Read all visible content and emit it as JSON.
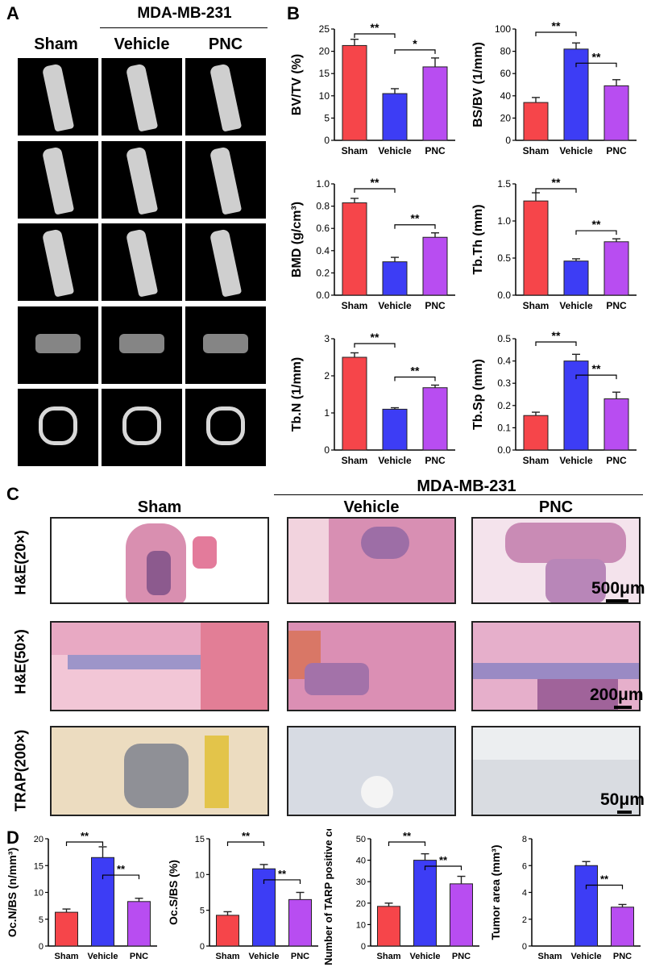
{
  "panel_a": {
    "label": "A",
    "group_header": "MDA-MB-231",
    "columns": [
      "Sham",
      "Vehicle",
      "PNC"
    ]
  },
  "panel_b": {
    "label": "B"
  },
  "panel_c": {
    "label": "C",
    "group_header": "MDA-MB-231",
    "columns": [
      "Sham",
      "Vehicle",
      "PNC"
    ],
    "rows": [
      "H&E(20×)",
      "H&E(50×)",
      "TRAP(200×)"
    ],
    "scale_bars": [
      "500μm",
      "200μm",
      "50μm"
    ]
  },
  "panel_d": {
    "label": "D"
  },
  "colors": {
    "sham": "#f6454a",
    "vehicle": "#3d3df5",
    "pnc": "#b84df1"
  },
  "chart_data": [
    {
      "id": "bvtv",
      "type": "bar",
      "categories": [
        "Sham",
        "Vehicle",
        "PNC"
      ],
      "values": [
        21.3,
        10.5,
        16.5
      ],
      "errors": [
        1.4,
        1.1,
        2.0
      ],
      "ylabel": "BV/TV (%)",
      "yticks": [
        "0",
        "5",
        "10",
        "15",
        "20",
        "25"
      ],
      "ylim": [
        0,
        25
      ],
      "sig": [
        {
          "from": 0,
          "to": 1,
          "label": "**"
        },
        {
          "from": 1,
          "to": 2,
          "label": "*"
        }
      ]
    },
    {
      "id": "bsbv",
      "type": "bar",
      "categories": [
        "Sham",
        "Vehicle",
        "PNC"
      ],
      "values": [
        34,
        82,
        49
      ],
      "errors": [
        4.5,
        5.5,
        5.5
      ],
      "ylabel": "BS/BV (1/mm)",
      "yticks": [
        "0",
        "20",
        "40",
        "60",
        "80",
        "100"
      ],
      "ylim": [
        0,
        100
      ],
      "sig": [
        {
          "from": 0,
          "to": 1,
          "label": "**"
        },
        {
          "from": 1,
          "to": 2,
          "label": "**"
        }
      ]
    },
    {
      "id": "bmd",
      "type": "bar",
      "categories": [
        "Sham",
        "Vehicle",
        "PNC"
      ],
      "values": [
        0.83,
        0.3,
        0.52
      ],
      "errors": [
        0.04,
        0.04,
        0.04
      ],
      "ylabel": "BMD (g/cm³)",
      "yticks": [
        "0.0",
        "0.2",
        "0.4",
        "0.6",
        "0.8",
        "1.0"
      ],
      "ylim": [
        0,
        1
      ],
      "sig": [
        {
          "from": 0,
          "to": 1,
          "label": "**"
        },
        {
          "from": 1,
          "to": 2,
          "label": "**"
        }
      ]
    },
    {
      "id": "tbth",
      "type": "bar",
      "categories": [
        "Sham",
        "Vehicle",
        "PNC"
      ],
      "values": [
        1.27,
        0.46,
        0.72
      ],
      "errors": [
        0.11,
        0.03,
        0.04
      ],
      "ylabel": "Tb.Th (mm)",
      "yticks": [
        "0.0",
        "0.5",
        "1.0",
        "1.5"
      ],
      "ylim": [
        0,
        1.5
      ],
      "sig": [
        {
          "from": 0,
          "to": 1,
          "label": "**"
        },
        {
          "from": 1,
          "to": 2,
          "label": "**"
        }
      ]
    },
    {
      "id": "tbn",
      "type": "bar",
      "categories": [
        "Sham",
        "Vehicle",
        "PNC"
      ],
      "values": [
        2.5,
        1.1,
        1.68
      ],
      "errors": [
        0.12,
        0.04,
        0.07
      ],
      "ylabel": "Tb.N (1/mm)",
      "yticks": [
        "0",
        "1",
        "2",
        "3"
      ],
      "ylim": [
        0,
        3
      ],
      "sig": [
        {
          "from": 0,
          "to": 1,
          "label": "**"
        },
        {
          "from": 1,
          "to": 2,
          "label": "**"
        }
      ]
    },
    {
      "id": "tbsp",
      "type": "bar",
      "categories": [
        "Sham",
        "Vehicle",
        "PNC"
      ],
      "values": [
        0.155,
        0.4,
        0.23
      ],
      "errors": [
        0.015,
        0.03,
        0.03
      ],
      "ylabel": "Tb.Sp (mm)",
      "yticks": [
        "0.0",
        "0.1",
        "0.2",
        "0.3",
        "0.4",
        "0.5"
      ],
      "ylim": [
        0,
        0.5
      ],
      "sig": [
        {
          "from": 0,
          "to": 1,
          "label": "**"
        },
        {
          "from": 1,
          "to": 2,
          "label": "**"
        }
      ]
    },
    {
      "id": "ocn",
      "type": "bar",
      "categories": [
        "Sham",
        "Vehicle",
        "PNC"
      ],
      "values": [
        6.3,
        16.5,
        8.3
      ],
      "errors": [
        0.6,
        2.0,
        0.6
      ],
      "ylabel": "Oc.N/BS (n/mm³)",
      "yticks": [
        "0",
        "5",
        "10",
        "15",
        "20"
      ],
      "ylim": [
        0,
        20
      ],
      "sig": [
        {
          "from": 0,
          "to": 1,
          "label": "**"
        },
        {
          "from": 1,
          "to": 2,
          "label": "**"
        }
      ]
    },
    {
      "id": "ocs",
      "type": "bar",
      "categories": [
        "Sham",
        "Vehicle",
        "PNC"
      ],
      "values": [
        4.3,
        10.8,
        6.5
      ],
      "errors": [
        0.5,
        0.6,
        1.0
      ],
      "ylabel": "Oc.S/BS (%)",
      "yticks": [
        "0",
        "5",
        "10",
        "15"
      ],
      "ylim": [
        0,
        15
      ],
      "sig": [
        {
          "from": 0,
          "to": 1,
          "label": "**"
        },
        {
          "from": 1,
          "to": 2,
          "label": "**"
        }
      ]
    },
    {
      "id": "tarp",
      "type": "bar",
      "categories": [
        "Sham",
        "Vehicle",
        "PNC"
      ],
      "values": [
        18.5,
        40,
        29
      ],
      "errors": [
        1.5,
        3,
        3.5
      ],
      "ylabel": "Number of TARP positive cell",
      "yticks": [
        "0",
        "10",
        "20",
        "30",
        "40",
        "50"
      ],
      "ylim": [
        0,
        50
      ],
      "sig": [
        {
          "from": 0,
          "to": 1,
          "label": "**"
        },
        {
          "from": 1,
          "to": 2,
          "label": "**"
        }
      ]
    },
    {
      "id": "tumor",
      "type": "bar",
      "categories": [
        "Sham",
        "Vehicle",
        "PNC"
      ],
      "values": [
        0,
        6.0,
        2.9
      ],
      "errors": [
        0,
        0.3,
        0.2
      ],
      "ylabel": "Tumor area (mm³)",
      "yticks": [
        "0",
        "2",
        "4",
        "6",
        "8"
      ],
      "ylim": [
        0,
        8
      ],
      "sig": [
        {
          "from": 1,
          "to": 2,
          "label": "**"
        }
      ]
    }
  ]
}
